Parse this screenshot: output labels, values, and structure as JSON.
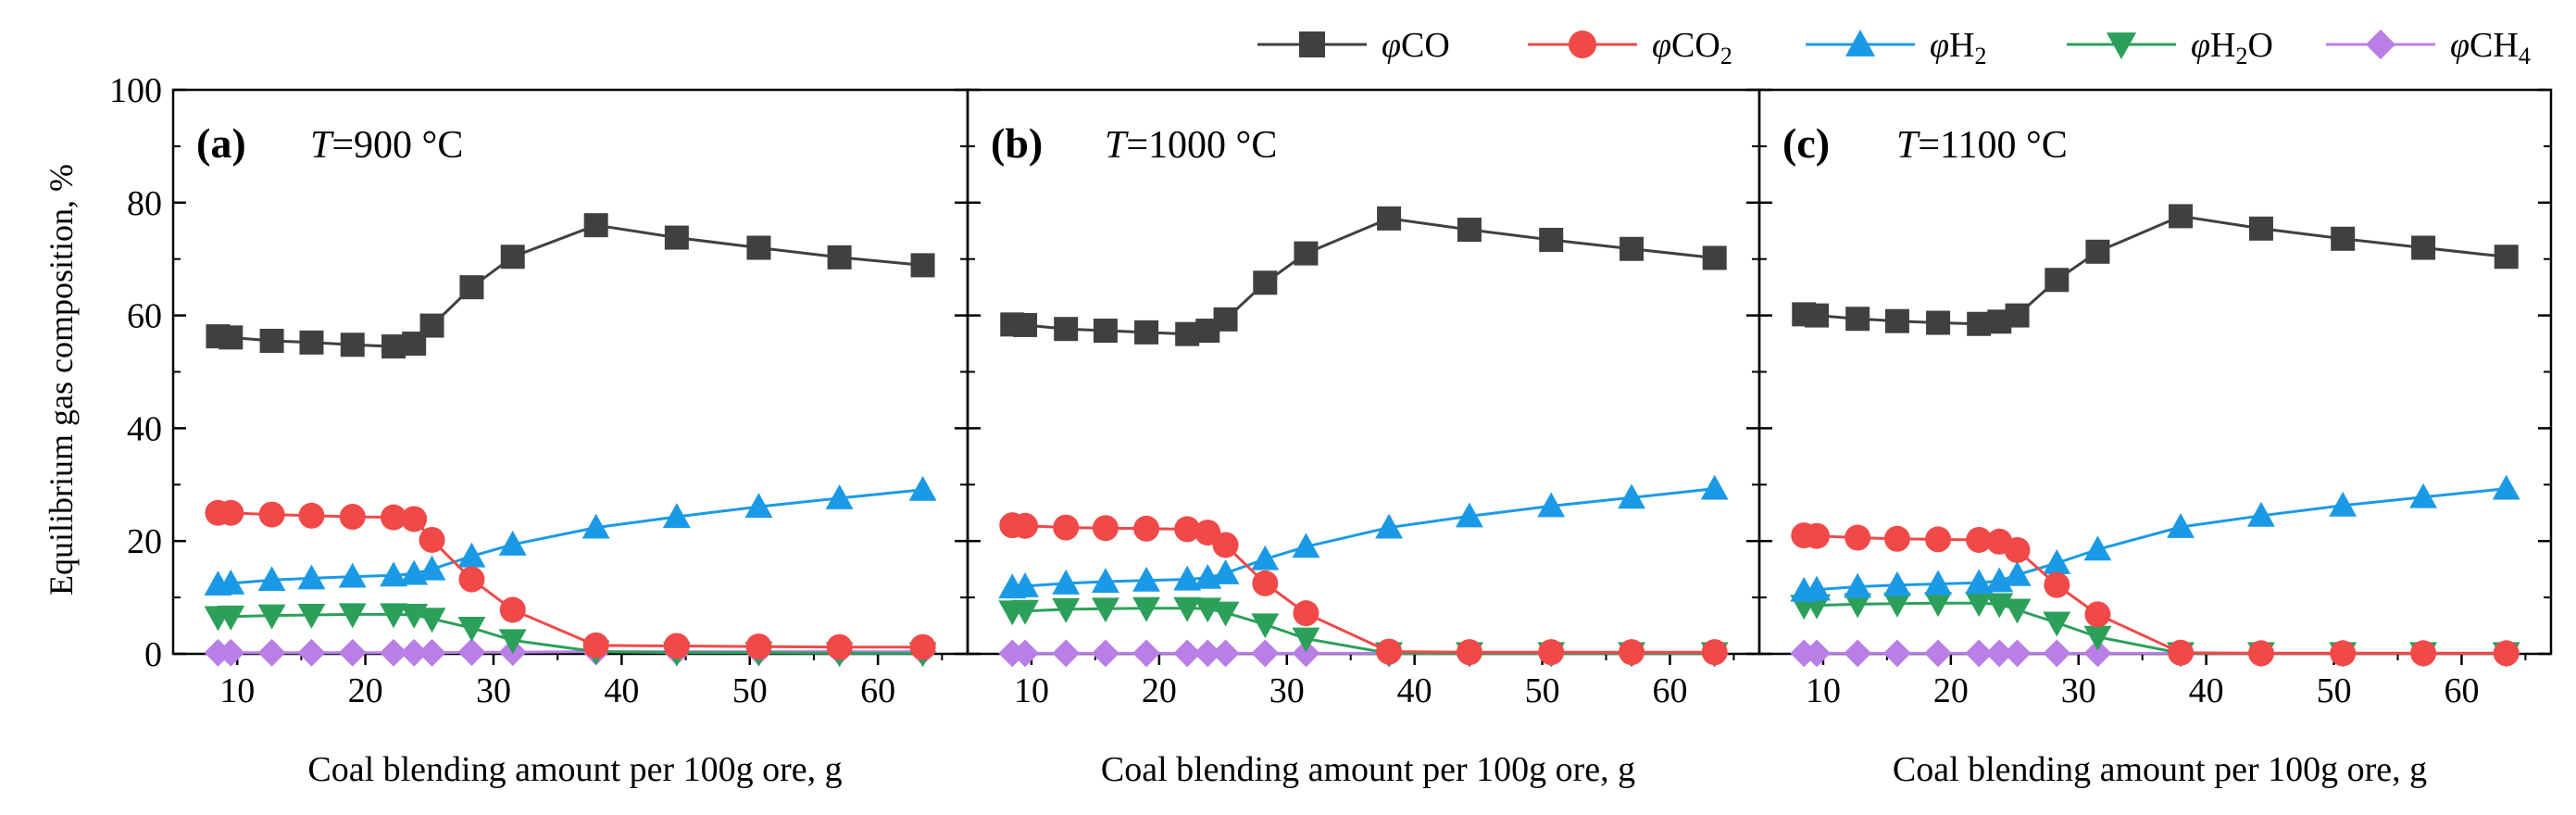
{
  "chart_data": {
    "type": "line",
    "ylabel": "Equilibrium gas composition, %",
    "xlabel": "Coal blending amount per 100g ore, g",
    "ylim": [
      0,
      100
    ],
    "xlim": [
      5,
      67
    ],
    "yticks": [
      0,
      20,
      40,
      60,
      80,
      100
    ],
    "xticks": [
      10,
      20,
      30,
      40,
      50,
      60
    ],
    "legend": [
      {
        "key": "CO",
        "prefix": "φ",
        "base": "CO",
        "sub": "",
        "color": "#404040",
        "marker": "square"
      },
      {
        "key": "CO2",
        "prefix": "φ",
        "base": "CO",
        "sub": "2",
        "color": "#f14848",
        "marker": "circle"
      },
      {
        "key": "H2",
        "prefix": "φ",
        "base": "H",
        "sub": "2",
        "color": "#1a9ae6",
        "marker": "triangle-up"
      },
      {
        "key": "H2O",
        "prefix": "φ",
        "base": "H",
        "sub": "2",
        "suffix": "O",
        "color": "#2ca05a",
        "marker": "triangle-down"
      },
      {
        "key": "CH4",
        "prefix": "φ",
        "base": "CH",
        "sub": "4",
        "color": "#b97fe6",
        "marker": "diamond"
      }
    ],
    "x": [
      8.5,
      9.5,
      12.7,
      15.8,
      19.0,
      22.2,
      23.8,
      25.2,
      28.3,
      31.5,
      38.0,
      44.3,
      50.7,
      57.0,
      63.5
    ],
    "panels": [
      {
        "tag": "(a)",
        "T": "T",
        "temp": "=900 °C",
        "series": {
          "CO": [
            56.3,
            56.1,
            55.5,
            55.2,
            54.8,
            54.5,
            55.0,
            58.2,
            65.0,
            70.4,
            76.0,
            73.8,
            72.0,
            70.3,
            68.9
          ],
          "CO2": [
            25.0,
            25.0,
            24.7,
            24.5,
            24.3,
            24.2,
            23.9,
            20.2,
            13.2,
            7.8,
            1.5,
            1.4,
            1.3,
            1.2,
            1.2
          ],
          "H2": [
            12.3,
            12.5,
            13.1,
            13.4,
            13.7,
            13.9,
            14.2,
            15.0,
            17.3,
            19.4,
            22.4,
            24.3,
            26.1,
            27.6,
            29.1
          ],
          "H2O": [
            6.5,
            6.6,
            6.8,
            6.9,
            7.0,
            7.0,
            6.9,
            6.2,
            4.6,
            2.4,
            0.4,
            0.2,
            0.2,
            0.1,
            0.1
          ],
          "CH4": [
            0.2,
            0.2,
            0.2,
            0.2,
            0.2,
            0.2,
            0.2,
            0.2,
            0.3,
            0.3,
            0.4,
            0.4,
            0.4,
            0.4,
            0.4
          ]
        }
      },
      {
        "tag": "(b)",
        "T": "T",
        "temp": "=1000 °C",
        "series": {
          "CO": [
            58.4,
            58.3,
            57.6,
            57.3,
            57.0,
            56.7,
            57.3,
            59.3,
            65.8,
            71.0,
            77.2,
            75.2,
            73.4,
            71.8,
            70.2
          ],
          "CO2": [
            22.8,
            22.7,
            22.4,
            22.3,
            22.2,
            22.1,
            21.5,
            19.3,
            12.5,
            7.2,
            0.4,
            0.3,
            0.3,
            0.3,
            0.3
          ],
          "H2": [
            11.8,
            12.0,
            12.5,
            12.8,
            13.0,
            13.2,
            13.5,
            14.3,
            16.8,
            19.0,
            22.4,
            24.4,
            26.2,
            27.7,
            29.3
          ],
          "H2O": [
            7.5,
            7.6,
            7.9,
            8.0,
            8.1,
            8.1,
            8.0,
            7.3,
            5.2,
            2.7,
            0.1,
            0.1,
            0.1,
            0.1,
            0.1
          ],
          "CH4": [
            0.1,
            0.1,
            0.1,
            0.1,
            0.1,
            0.1,
            0.1,
            0.1,
            0.1,
            0.1,
            0.1,
            0.1,
            0.1,
            0.1,
            0.1
          ]
        }
      },
      {
        "tag": "(c)",
        "T": "T",
        "temp": "=1100 °C",
        "series": {
          "CO": [
            60.2,
            60.0,
            59.4,
            59.0,
            58.7,
            58.5,
            58.9,
            60.0,
            66.3,
            71.3,
            77.6,
            75.4,
            73.6,
            72.0,
            70.4
          ],
          "CO2": [
            21.0,
            20.9,
            20.6,
            20.4,
            20.3,
            20.2,
            19.9,
            18.4,
            12.2,
            7.0,
            0.2,
            0.1,
            0.1,
            0.1,
            0.1
          ],
          "H2": [
            11.2,
            11.4,
            11.9,
            12.2,
            12.4,
            12.6,
            12.9,
            14.0,
            16.1,
            18.5,
            22.5,
            24.5,
            26.3,
            27.8,
            29.3
          ],
          "H2O": [
            8.5,
            8.6,
            8.8,
            8.9,
            9.0,
            9.0,
            8.8,
            7.8,
            5.5,
            3.0,
            0.1,
            0.1,
            0.1,
            0.1,
            0.1
          ],
          "CH4": [
            0.1,
            0.1,
            0.1,
            0.1,
            0.1,
            0.1,
            0.1,
            0.1,
            0.1,
            0.1,
            0.1,
            0.1,
            0.1,
            0.1,
            0.1
          ]
        }
      }
    ]
  }
}
